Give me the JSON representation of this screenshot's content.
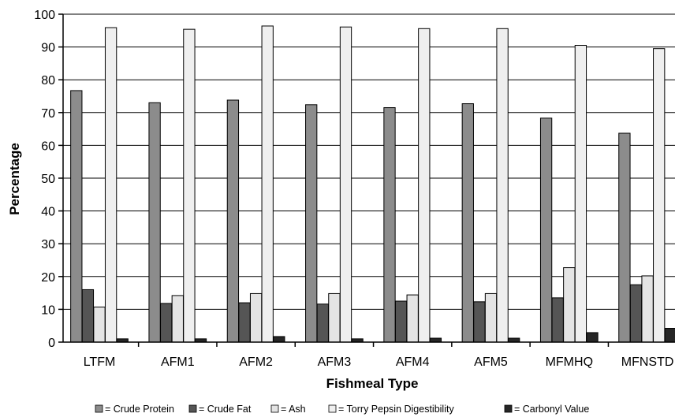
{
  "chart_data": {
    "type": "bar",
    "title": "",
    "xlabel": "Fishmeal Type",
    "ylabel": "Percentage",
    "ylim": [
      0,
      100
    ],
    "yticks": [
      0,
      10,
      20,
      30,
      40,
      50,
      60,
      70,
      80,
      90,
      100
    ],
    "grid": "horizontal",
    "legend_position": "bottom",
    "categories": [
      "LTFM",
      "AFM1",
      "AFM2",
      "AFM3",
      "AFM4",
      "AFM5",
      "MFMHQ",
      "MFNSTD"
    ],
    "series": [
      {
        "name": "= Crude Protein",
        "color": "#8c8c8c",
        "values": [
          76.7,
          73.0,
          73.8,
          72.4,
          71.5,
          72.7,
          68.3,
          63.7
        ]
      },
      {
        "name": "= Crude Fat",
        "color": "#555555",
        "values": [
          16.0,
          11.8,
          12.0,
          11.6,
          12.5,
          12.3,
          13.5,
          17.5
        ]
      },
      {
        "name": "= Ash",
        "color": "#e4e4e4",
        "values": [
          10.7,
          14.2,
          14.8,
          14.8,
          14.4,
          14.8,
          22.7,
          20.2
        ]
      },
      {
        "name": "= Torry Pepsin Digestibility",
        "color": "#efefef",
        "values": [
          95.9,
          95.4,
          96.4,
          96.1,
          95.6,
          95.6,
          90.5,
          89.5
        ]
      },
      {
        "name": "= Carbonyl Value",
        "color": "#262626",
        "values": [
          1.0,
          1.0,
          1.7,
          1.0,
          1.2,
          1.2,
          2.9,
          4.2
        ]
      }
    ]
  }
}
